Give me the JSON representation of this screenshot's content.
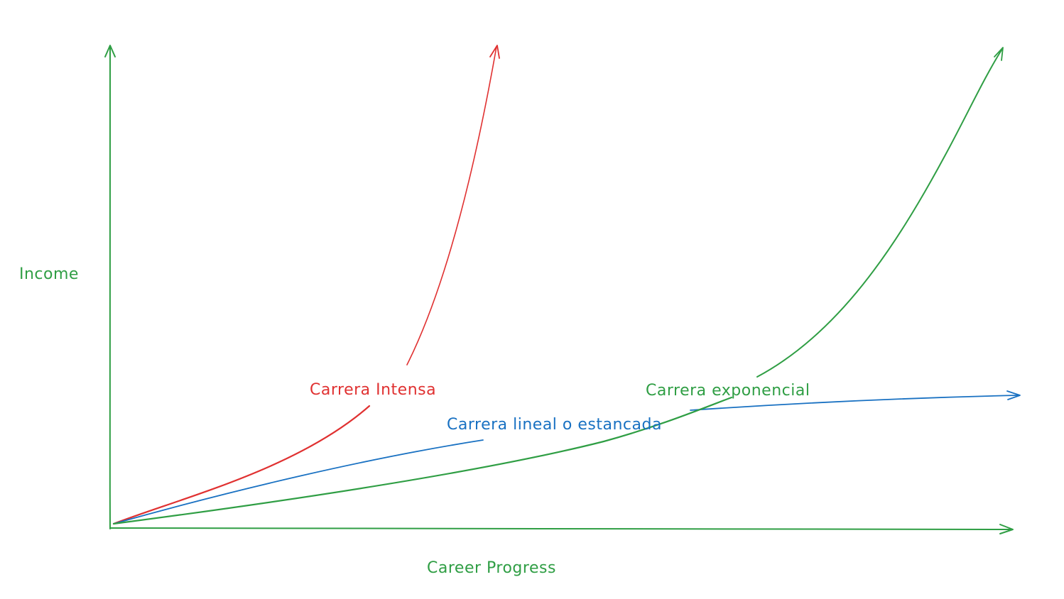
{
  "diagram": {
    "axes": {
      "x_label": "Career Progress",
      "y_label": "Income",
      "color": "#2f9e44"
    },
    "curves": [
      {
        "id": "intensa",
        "label": "Carrera Intensa",
        "color": "#e03131"
      },
      {
        "id": "lineal",
        "label": "Carrera lineal o estancada",
        "color": "#1971c2"
      },
      {
        "id": "exponencial",
        "label": "Carrera exponencial",
        "color": "#2f9e44"
      }
    ]
  }
}
